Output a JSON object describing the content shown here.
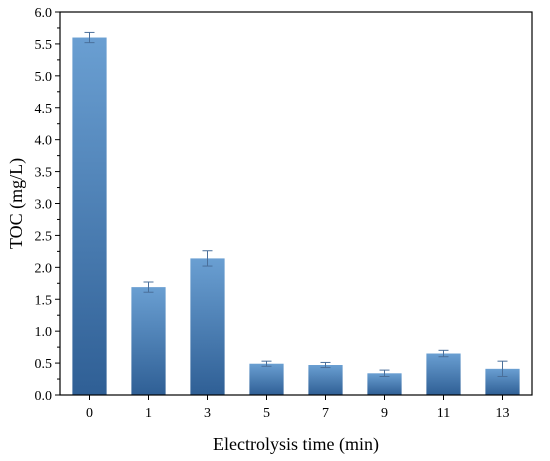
{
  "chart_data": {
    "type": "bar",
    "xlabel": "Electrolysis time (min)",
    "ylabel": "TOC (mg/L)",
    "categories": [
      "0",
      "1",
      "3",
      "5",
      "7",
      "9",
      "11",
      "13"
    ],
    "values": [
      5.6,
      1.69,
      2.14,
      0.49,
      0.47,
      0.34,
      0.65,
      0.41
    ],
    "errors": [
      0.08,
      0.08,
      0.12,
      0.04,
      0.04,
      0.05,
      0.05,
      0.12
    ],
    "ylim": [
      0,
      6.0
    ],
    "yticks": [
      "0.0",
      "0.5",
      "1.0",
      "1.5",
      "2.0",
      "2.5",
      "3.0",
      "3.5",
      "4.0",
      "4.5",
      "5.0",
      "5.5",
      "6.0"
    ],
    "grid": false,
    "legend": "none",
    "colors": {
      "bar_top": "#6a9fd2",
      "bar_bottom": "#2f5f95",
      "error_bar": "#4a6f9a",
      "axis": "#000000"
    }
  }
}
